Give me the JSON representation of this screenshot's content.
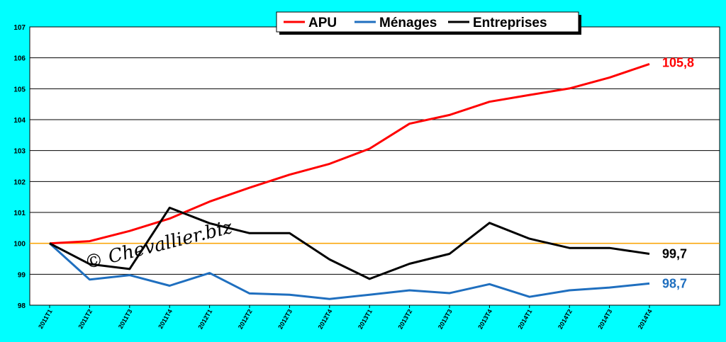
{
  "chart_data": {
    "type": "line",
    "title": "",
    "xlabel": "",
    "ylabel": "",
    "ylim": [
      98,
      107
    ],
    "yticks": [
      "98",
      "99",
      "100",
      "101",
      "102",
      "103",
      "104",
      "105",
      "106",
      "107"
    ],
    "reference_line": 100,
    "reference_color": "#FFA500",
    "grid": true,
    "legend_position": "top-center",
    "categories": [
      "2011T1",
      "2011T2",
      "2011T3",
      "2011T4",
      "2012T1",
      "2012T2",
      "2012T3",
      "2012T4",
      "2013T1",
      "2013T2",
      "2013T3",
      "2013T4",
      "2014T1",
      "2014T2",
      "2014T3",
      "2014T4"
    ],
    "series": [
      {
        "name": "APU",
        "color": "#FF0000",
        "values": [
          100.0,
          100.07,
          100.4,
          100.8,
          101.35,
          101.8,
          102.22,
          102.57,
          103.06,
          103.87,
          104.15,
          104.58,
          104.8,
          105.01,
          105.36,
          105.8
        ],
        "end_label": "105,8"
      },
      {
        "name": "Ménages",
        "color": "#1F6FBF",
        "values": [
          100.0,
          98.83,
          98.97,
          98.63,
          99.04,
          98.38,
          98.34,
          98.2,
          98.34,
          98.48,
          98.39,
          98.68,
          98.27,
          98.48,
          98.57,
          98.7
        ],
        "end_label": "98,7"
      },
      {
        "name": "Entreprises",
        "color": "#000000",
        "values": [
          100.0,
          99.33,
          99.17,
          101.15,
          100.65,
          100.33,
          100.33,
          99.48,
          98.85,
          99.34,
          99.66,
          100.66,
          100.15,
          99.85,
          99.85,
          99.66
        ],
        "end_label": "99,7"
      }
    ],
    "watermark": "© Chevallier.biz"
  }
}
